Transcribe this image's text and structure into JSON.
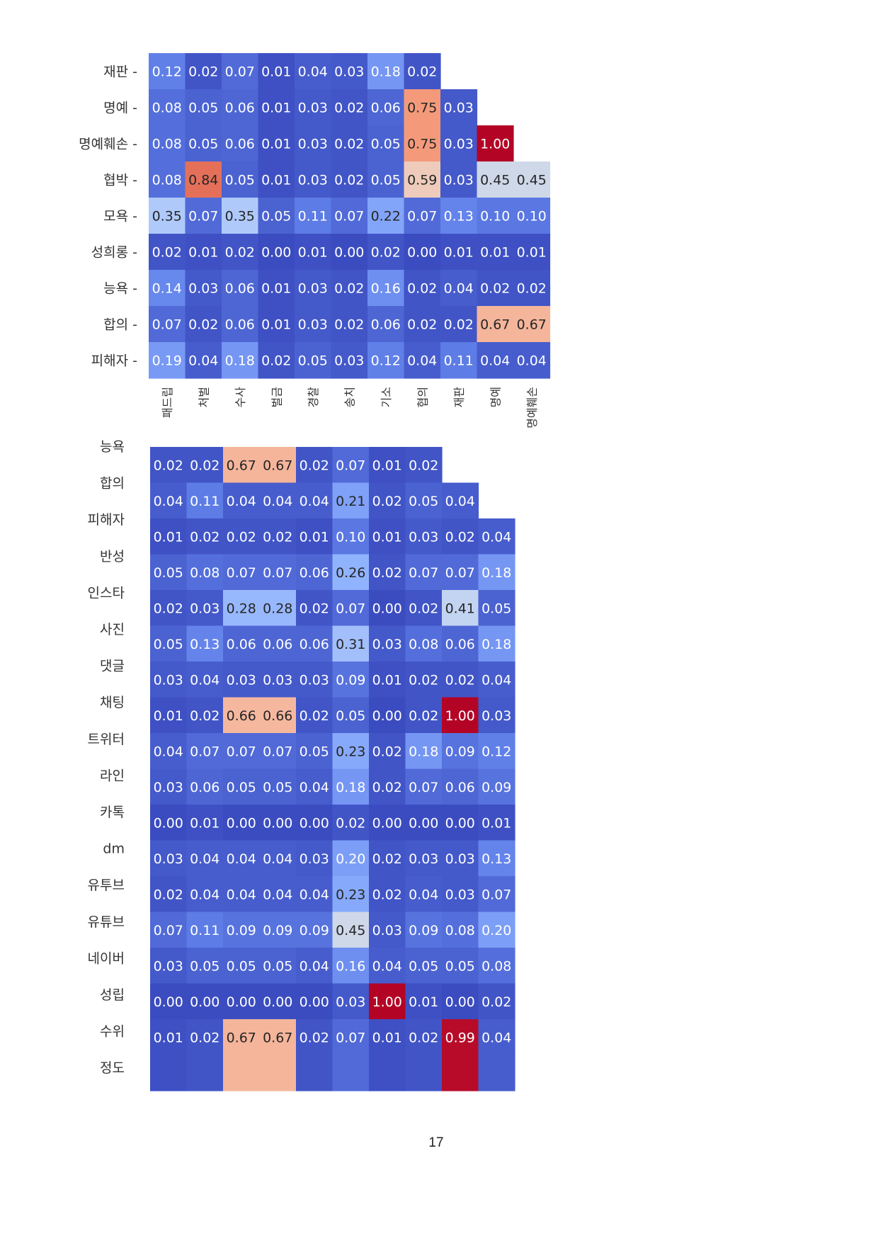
{
  "page_number": "17",
  "chart_data": [
    {
      "type": "heatmap",
      "colormap": "coolwarm",
      "value_range": [
        0,
        1
      ],
      "row_tick_marks": true,
      "rows": [
        "재판",
        "명예",
        "명예훼손",
        "협박",
        "모욕",
        "성희롱",
        "능욕",
        "합의",
        "피해자"
      ],
      "columns": [
        "패드립",
        "처벌",
        "수사",
        "벌금",
        "경찰",
        "송치",
        "기소",
        "협의",
        "재판",
        "명예",
        "명예훼손"
      ],
      "values": [
        [
          0.12,
          0.02,
          0.07,
          0.01,
          0.04,
          0.03,
          0.18,
          0.02,
          null,
          null,
          null
        ],
        [
          0.08,
          0.05,
          0.06,
          0.01,
          0.03,
          0.02,
          0.06,
          0.75,
          0.03,
          null,
          null
        ],
        [
          0.08,
          0.05,
          0.06,
          0.01,
          0.03,
          0.02,
          0.05,
          0.75,
          0.03,
          1.0,
          null
        ],
        [
          0.08,
          0.84,
          0.05,
          0.01,
          0.03,
          0.02,
          0.05,
          0.59,
          0.03,
          0.45,
          0.45
        ],
        [
          0.35,
          0.07,
          0.35,
          0.05,
          0.11,
          0.07,
          0.22,
          0.07,
          0.13,
          0.1,
          0.1
        ],
        [
          0.02,
          0.01,
          0.02,
          0.0,
          0.01,
          0.0,
          0.02,
          0.0,
          0.01,
          0.01,
          0.01
        ],
        [
          0.14,
          0.03,
          0.06,
          0.01,
          0.03,
          0.02,
          0.16,
          0.02,
          0.04,
          0.02,
          0.02
        ],
        [
          0.07,
          0.02,
          0.06,
          0.01,
          0.03,
          0.02,
          0.06,
          0.02,
          0.02,
          0.67,
          0.67
        ],
        [
          0.19,
          0.04,
          0.18,
          0.02,
          0.05,
          0.03,
          0.12,
          0.04,
          0.11,
          0.04,
          0.04
        ]
      ],
      "value_text": [
        [
          "0.12",
          "0.02",
          "0.07",
          "0.01",
          "0.04",
          "0.03",
          "0.18",
          "0.02",
          "",
          "",
          ""
        ],
        [
          "0.08",
          "0.05",
          "0.06",
          "0.01",
          "0.03",
          "0.02",
          "0.06",
          "0.75",
          "0.03",
          "",
          ""
        ],
        [
          "0.08",
          "0.05",
          "0.06",
          "0.01",
          "0.03",
          "0.02",
          "0.05",
          "0.75",
          "0.03",
          "1.00",
          ""
        ],
        [
          "0.08",
          "0.84",
          "0.05",
          "0.01",
          "0.03",
          "0.02",
          "0.05",
          "0.59",
          "0.03",
          "0.45",
          "0.45"
        ],
        [
          "0.35",
          "0.07",
          "0.35",
          "0.05",
          "0.11",
          "0.07",
          "0.22",
          "0.07",
          "0.13",
          "0.10",
          "0.10"
        ],
        [
          "0.02",
          "0.01",
          "0.02",
          "0.00",
          "0.01",
          "0.00",
          "0.02",
          "0.00",
          "0.01",
          "0.01",
          "0.01"
        ],
        [
          "0.14",
          "0.03",
          "0.06",
          "0.01",
          "0.03",
          "0.02",
          "0.16",
          "0.02",
          "0.04",
          "0.02",
          "0.02"
        ],
        [
          "0.07",
          "0.02",
          "0.06",
          "0.01",
          "0.03",
          "0.02",
          "0.06",
          "0.02",
          "0.02",
          "0.67",
          "0.67"
        ],
        [
          "0.19",
          "0.04",
          "0.18",
          "0.02",
          "0.05",
          "0.03",
          "0.12",
          "0.04",
          "0.11",
          "0.04",
          "0.04"
        ]
      ]
    },
    {
      "type": "heatmap",
      "colormap": "coolwarm",
      "value_range": [
        0,
        1
      ],
      "row_tick_marks": false,
      "rows": [
        "능욕",
        "합의",
        "피해자",
        "반성",
        "인스타",
        "사진",
        "댓글",
        "채팅",
        "트위터",
        "라인",
        "카톡",
        "dm",
        "유투브",
        "유튜브",
        "네이버",
        "성립",
        "수위",
        "정도"
      ],
      "columns": [],
      "values": [
        [
          0.02,
          0.02,
          0.67,
          0.67,
          0.02,
          0.07,
          0.01,
          0.02,
          null,
          null
        ],
        [
          0.04,
          0.11,
          0.04,
          0.04,
          0.04,
          0.21,
          0.02,
          0.05,
          0.04,
          null
        ],
        [
          0.01,
          0.02,
          0.02,
          0.02,
          0.01,
          0.1,
          0.01,
          0.03,
          0.02,
          0.04
        ],
        [
          0.05,
          0.08,
          0.07,
          0.07,
          0.06,
          0.26,
          0.02,
          0.07,
          0.07,
          0.18
        ],
        [
          0.02,
          0.03,
          0.28,
          0.28,
          0.02,
          0.07,
          0.0,
          0.02,
          0.41,
          0.05
        ],
        [
          0.05,
          0.13,
          0.06,
          0.06,
          0.06,
          0.31,
          0.03,
          0.08,
          0.06,
          0.18
        ],
        [
          0.03,
          0.04,
          0.03,
          0.03,
          0.03,
          0.09,
          0.01,
          0.02,
          0.02,
          0.04
        ],
        [
          0.01,
          0.02,
          0.66,
          0.66,
          0.02,
          0.05,
          0.0,
          0.02,
          1.0,
          0.03
        ],
        [
          0.04,
          0.07,
          0.07,
          0.07,
          0.05,
          0.23,
          0.02,
          0.18,
          0.09,
          0.12
        ],
        [
          0.03,
          0.06,
          0.05,
          0.05,
          0.04,
          0.18,
          0.02,
          0.07,
          0.06,
          0.09
        ],
        [
          0.0,
          0.01,
          0.0,
          0.0,
          0.0,
          0.02,
          0.0,
          0.0,
          0.0,
          0.01
        ],
        [
          0.03,
          0.04,
          0.04,
          0.04,
          0.03,
          0.2,
          0.02,
          0.03,
          0.03,
          0.13
        ],
        [
          0.02,
          0.04,
          0.04,
          0.04,
          0.04,
          0.23,
          0.02,
          0.04,
          0.03,
          0.07
        ],
        [
          0.07,
          0.11,
          0.09,
          0.09,
          0.09,
          0.45,
          0.03,
          0.09,
          0.08,
          0.2
        ],
        [
          0.03,
          0.05,
          0.05,
          0.05,
          0.04,
          0.16,
          0.04,
          0.05,
          0.05,
          0.08
        ],
        [
          0.0,
          0.0,
          0.0,
          0.0,
          0.0,
          0.03,
          1.0,
          0.01,
          0.0,
          0.02
        ],
        [
          0.01,
          0.02,
          0.67,
          0.67,
          0.02,
          0.07,
          0.01,
          0.02,
          0.99,
          0.04
        ],
        [
          0.01,
          0.02,
          0.67,
          0.67,
          0.02,
          0.07,
          0.01,
          0.02,
          0.99,
          0.04
        ]
      ],
      "value_text": [
        [
          "0.02",
          "0.02",
          "0.67",
          "0.67",
          "0.02",
          "0.07",
          "0.01",
          "0.02",
          "",
          ""
        ],
        [
          "0.04",
          "0.11",
          "0.04",
          "0.04",
          "0.04",
          "0.21",
          "0.02",
          "0.05",
          "0.04",
          ""
        ],
        [
          "0.01",
          "0.02",
          "0.02",
          "0.02",
          "0.01",
          "0.10",
          "0.01",
          "0.03",
          "0.02",
          "0.04"
        ],
        [
          "0.05",
          "0.08",
          "0.07",
          "0.07",
          "0.06",
          "0.26",
          "0.02",
          "0.07",
          "0.07",
          "0.18"
        ],
        [
          "0.02",
          "0.03",
          "0.28",
          "0.28",
          "0.02",
          "0.07",
          "0.00",
          "0.02",
          "0.41",
          "0.05"
        ],
        [
          "0.05",
          "0.13",
          "0.06",
          "0.06",
          "0.06",
          "0.31",
          "0.03",
          "0.08",
          "0.06",
          "0.18"
        ],
        [
          "0.03",
          "0.04",
          "0.03",
          "0.03",
          "0.03",
          "0.09",
          "0.01",
          "0.02",
          "0.02",
          "0.04"
        ],
        [
          "0.01",
          "0.02",
          "0.66",
          "0.66",
          "0.02",
          "0.05",
          "0.00",
          "0.02",
          "1.00",
          "0.03"
        ],
        [
          "0.04",
          "0.07",
          "0.07",
          "0.07",
          "0.05",
          "0.23",
          "0.02",
          "0.18",
          "0.09",
          "0.12"
        ],
        [
          "0.03",
          "0.06",
          "0.05",
          "0.05",
          "0.04",
          "0.18",
          "0.02",
          "0.07",
          "0.06",
          "0.09"
        ],
        [
          "0.00",
          "0.01",
          "0.00",
          "0.00",
          "0.00",
          "0.02",
          "0.00",
          "0.00",
          "0.00",
          "0.01"
        ],
        [
          "0.03",
          "0.04",
          "0.04",
          "0.04",
          "0.03",
          "0.20",
          "0.02",
          "0.03",
          "0.03",
          "0.13"
        ],
        [
          "0.02",
          "0.04",
          "0.04",
          "0.04",
          "0.04",
          "0.23",
          "0.02",
          "0.04",
          "0.03",
          "0.07"
        ],
        [
          "0.07",
          "0.11",
          "0.09",
          "0.09",
          "0.09",
          "0.45",
          "0.03",
          "0.09",
          "0.08",
          "0.20"
        ],
        [
          "0.03",
          "0.05",
          "0.05",
          "0.05",
          "0.04",
          "0.16",
          "0.04",
          "0.05",
          "0.05",
          "0.08"
        ],
        [
          "0.00",
          "0.00",
          "0.00",
          "0.00",
          "0.00",
          "0.03",
          "1.00",
          "0.01",
          "0.00",
          "0.02"
        ],
        [
          "0.01",
          "0.02",
          "0.67",
          "0.67",
          "0.02",
          "0.07",
          "0.01",
          "0.02",
          "0.99",
          "0.04"
        ],
        [
          "",
          "",
          "",
          "",
          "",
          "",
          "",
          "",
          "",
          ""
        ]
      ]
    }
  ]
}
